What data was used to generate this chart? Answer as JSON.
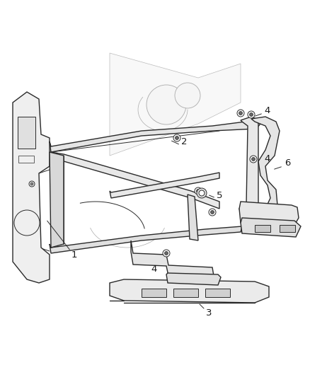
{
  "bg_color": "#ffffff",
  "line_color": "#2a2a2a",
  "light_line": "#555555",
  "faint_line": "#999999",
  "fill_light": "#f2f2f2",
  "fill_medium": "#e8e8e8",
  "fill_dark": "#d8d8d8",
  "label_color": "#1a1a1a",
  "figsize": [
    4.38,
    5.33
  ],
  "dpi": 100
}
